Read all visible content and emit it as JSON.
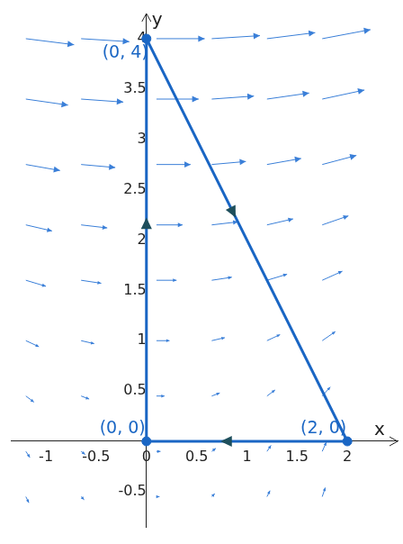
{
  "chart_data": {
    "type": "vector_field",
    "xlabel": "x",
    "ylabel": "y",
    "xlim": [
      -1.35,
      2.5
    ],
    "ylim": [
      -0.85,
      4.25
    ],
    "xticks": [
      -1,
      -0.5,
      0,
      0.5,
      1,
      1.5,
      2
    ],
    "yticks": [
      -0.5,
      0.5,
      1,
      1.5,
      2,
      2.5,
      3,
      3.5,
      4
    ],
    "grid": false,
    "region": {
      "vertices": [
        [
          0,
          0
        ],
        [
          0,
          4
        ],
        [
          2,
          0
        ]
      ],
      "color": "#1a66c4"
    },
    "annotations": [
      {
        "text": "(0, 4)",
        "x": 0,
        "y": 4
      },
      {
        "text": "(0, 0)",
        "x": 0,
        "y": 0
      },
      {
        "text": "(2, 0)",
        "x": 2,
        "y": 0
      }
    ],
    "vectors": {
      "color": "#3a7fd8",
      "points": [
        [
          -1.2,
          4.0,
          0.48,
          -0.06
        ],
        [
          -0.65,
          4.0,
          0.48,
          -0.03
        ],
        [
          0.1,
          4.0,
          0.48,
          0.0
        ],
        [
          0.65,
          4.0,
          0.48,
          0.03
        ],
        [
          1.2,
          4.0,
          0.48,
          0.06
        ],
        [
          1.75,
          4.0,
          0.48,
          0.09
        ],
        [
          -1.2,
          3.4,
          0.42,
          -0.06
        ],
        [
          -0.65,
          3.4,
          0.42,
          -0.03
        ],
        [
          0.1,
          3.4,
          0.42,
          0.0
        ],
        [
          0.65,
          3.4,
          0.42,
          0.03
        ],
        [
          1.2,
          3.4,
          0.42,
          0.06
        ],
        [
          1.75,
          3.4,
          0.42,
          0.09
        ],
        [
          -1.2,
          2.75,
          0.34,
          -0.06
        ],
        [
          -0.65,
          2.75,
          0.34,
          -0.03
        ],
        [
          0.1,
          2.75,
          0.34,
          0.0
        ],
        [
          0.65,
          2.75,
          0.34,
          0.03
        ],
        [
          1.2,
          2.75,
          0.34,
          0.06
        ],
        [
          1.75,
          2.75,
          0.34,
          0.09
        ],
        [
          -1.2,
          2.15,
          0.26,
          -0.06
        ],
        [
          -0.65,
          2.15,
          0.26,
          -0.03
        ],
        [
          0.1,
          2.15,
          0.26,
          0.0
        ],
        [
          0.65,
          2.15,
          0.26,
          0.03
        ],
        [
          1.2,
          2.15,
          0.26,
          0.06
        ],
        [
          1.75,
          2.15,
          0.26,
          0.09
        ],
        [
          -1.2,
          1.6,
          0.2,
          -0.06
        ],
        [
          -0.65,
          1.6,
          0.2,
          -0.03
        ],
        [
          0.1,
          1.6,
          0.2,
          0.0
        ],
        [
          0.65,
          1.6,
          0.2,
          0.03
        ],
        [
          1.2,
          1.6,
          0.2,
          0.06
        ],
        [
          1.75,
          1.6,
          0.2,
          0.09
        ],
        [
          -1.2,
          1.0,
          0.13,
          -0.06
        ],
        [
          -0.65,
          1.0,
          0.13,
          -0.03
        ],
        [
          0.1,
          1.0,
          0.13,
          0.0
        ],
        [
          0.65,
          1.0,
          0.13,
          0.03
        ],
        [
          1.2,
          1.0,
          0.13,
          0.06
        ],
        [
          1.75,
          1.0,
          0.13,
          0.09
        ],
        [
          -1.2,
          0.45,
          0.08,
          -0.06
        ],
        [
          -0.65,
          0.45,
          0.08,
          -0.03
        ],
        [
          0.1,
          0.45,
          0.08,
          0.0
        ],
        [
          0.65,
          0.45,
          0.08,
          0.03
        ],
        [
          1.2,
          0.45,
          0.08,
          0.06
        ],
        [
          1.75,
          0.45,
          0.08,
          0.09
        ],
        [
          -1.2,
          -0.1,
          0.04,
          -0.06
        ],
        [
          -0.65,
          -0.1,
          0.04,
          -0.03
        ],
        [
          0.1,
          -0.1,
          0.04,
          0.0
        ],
        [
          0.65,
          -0.1,
          0.04,
          0.03
        ],
        [
          1.2,
          -0.1,
          0.04,
          0.06
        ],
        [
          1.75,
          -0.1,
          0.04,
          0.09
        ],
        [
          -1.2,
          -0.55,
          0.03,
          -0.06
        ],
        [
          -0.65,
          -0.55,
          0.03,
          -0.03
        ],
        [
          0.1,
          -0.55,
          0.03,
          0.0
        ],
        [
          0.65,
          -0.55,
          0.03,
          0.03
        ],
        [
          1.2,
          -0.55,
          0.03,
          0.06
        ],
        [
          1.75,
          -0.55,
          0.03,
          0.09
        ]
      ]
    }
  }
}
